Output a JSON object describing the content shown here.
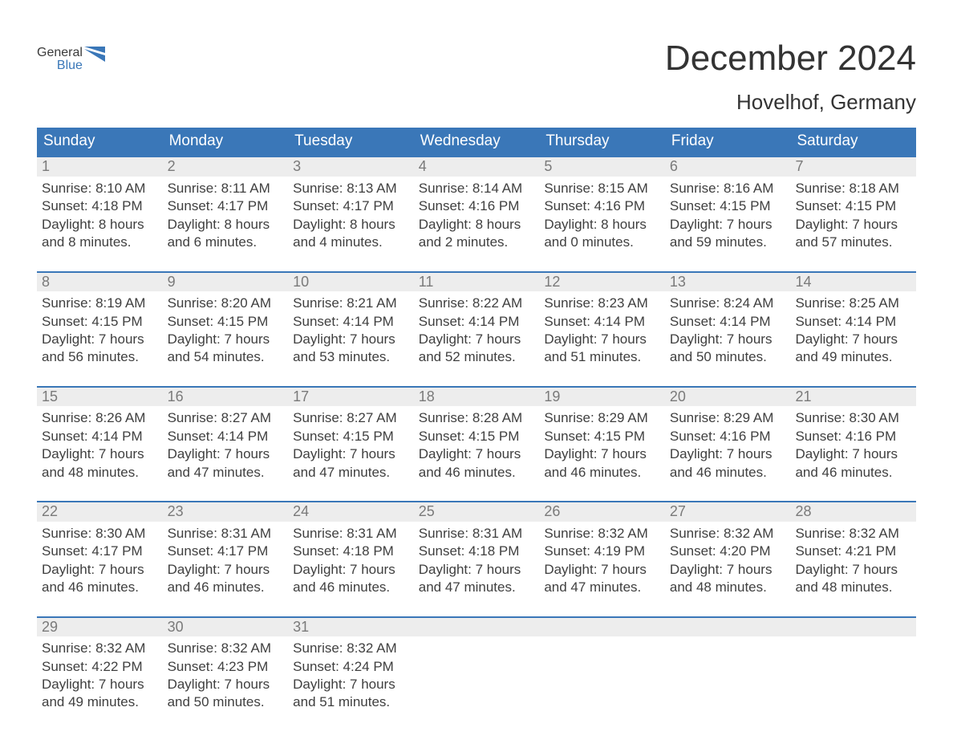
{
  "brand": {
    "word1": "General",
    "word2": "Blue",
    "text_color": "#474747",
    "accent_color": "#3a77b8"
  },
  "header": {
    "title": "December 2024",
    "location": "Hovelhof, Germany"
  },
  "calendar": {
    "type": "calendar-table",
    "header_bg": "#3a77b8",
    "header_fg": "#ffffff",
    "row_divider_color": "#3a77b8",
    "daynum_bg": "#ededed",
    "daynum_fg": "#7a7a7a",
    "body_fg": "#3f3f3f",
    "page_bg": "#ffffff",
    "day_names": [
      "Sunday",
      "Monday",
      "Tuesday",
      "Wednesday",
      "Thursday",
      "Friday",
      "Saturday"
    ],
    "weeks": [
      [
        {
          "n": "1",
          "sunrise": "8:10 AM",
          "sunset": "4:18 PM",
          "dl1": "Daylight: 8 hours",
          "dl2": "and 8 minutes."
        },
        {
          "n": "2",
          "sunrise": "8:11 AM",
          "sunset": "4:17 PM",
          "dl1": "Daylight: 8 hours",
          "dl2": "and 6 minutes."
        },
        {
          "n": "3",
          "sunrise": "8:13 AM",
          "sunset": "4:17 PM",
          "dl1": "Daylight: 8 hours",
          "dl2": "and 4 minutes."
        },
        {
          "n": "4",
          "sunrise": "8:14 AM",
          "sunset": "4:16 PM",
          "dl1": "Daylight: 8 hours",
          "dl2": "and 2 minutes."
        },
        {
          "n": "5",
          "sunrise": "8:15 AM",
          "sunset": "4:16 PM",
          "dl1": "Daylight: 8 hours",
          "dl2": "and 0 minutes."
        },
        {
          "n": "6",
          "sunrise": "8:16 AM",
          "sunset": "4:15 PM",
          "dl1": "Daylight: 7 hours",
          "dl2": "and 59 minutes."
        },
        {
          "n": "7",
          "sunrise": "8:18 AM",
          "sunset": "4:15 PM",
          "dl1": "Daylight: 7 hours",
          "dl2": "and 57 minutes."
        }
      ],
      [
        {
          "n": "8",
          "sunrise": "8:19 AM",
          "sunset": "4:15 PM",
          "dl1": "Daylight: 7 hours",
          "dl2": "and 56 minutes."
        },
        {
          "n": "9",
          "sunrise": "8:20 AM",
          "sunset": "4:15 PM",
          "dl1": "Daylight: 7 hours",
          "dl2": "and 54 minutes."
        },
        {
          "n": "10",
          "sunrise": "8:21 AM",
          "sunset": "4:14 PM",
          "dl1": "Daylight: 7 hours",
          "dl2": "and 53 minutes."
        },
        {
          "n": "11",
          "sunrise": "8:22 AM",
          "sunset": "4:14 PM",
          "dl1": "Daylight: 7 hours",
          "dl2": "and 52 minutes."
        },
        {
          "n": "12",
          "sunrise": "8:23 AM",
          "sunset": "4:14 PM",
          "dl1": "Daylight: 7 hours",
          "dl2": "and 51 minutes."
        },
        {
          "n": "13",
          "sunrise": "8:24 AM",
          "sunset": "4:14 PM",
          "dl1": "Daylight: 7 hours",
          "dl2": "and 50 minutes."
        },
        {
          "n": "14",
          "sunrise": "8:25 AM",
          "sunset": "4:14 PM",
          "dl1": "Daylight: 7 hours",
          "dl2": "and 49 minutes."
        }
      ],
      [
        {
          "n": "15",
          "sunrise": "8:26 AM",
          "sunset": "4:14 PM",
          "dl1": "Daylight: 7 hours",
          "dl2": "and 48 minutes."
        },
        {
          "n": "16",
          "sunrise": "8:27 AM",
          "sunset": "4:14 PM",
          "dl1": "Daylight: 7 hours",
          "dl2": "and 47 minutes."
        },
        {
          "n": "17",
          "sunrise": "8:27 AM",
          "sunset": "4:15 PM",
          "dl1": "Daylight: 7 hours",
          "dl2": "and 47 minutes."
        },
        {
          "n": "18",
          "sunrise": "8:28 AM",
          "sunset": "4:15 PM",
          "dl1": "Daylight: 7 hours",
          "dl2": "and 46 minutes."
        },
        {
          "n": "19",
          "sunrise": "8:29 AM",
          "sunset": "4:15 PM",
          "dl1": "Daylight: 7 hours",
          "dl2": "and 46 minutes."
        },
        {
          "n": "20",
          "sunrise": "8:29 AM",
          "sunset": "4:16 PM",
          "dl1": "Daylight: 7 hours",
          "dl2": "and 46 minutes."
        },
        {
          "n": "21",
          "sunrise": "8:30 AM",
          "sunset": "4:16 PM",
          "dl1": "Daylight: 7 hours",
          "dl2": "and 46 minutes."
        }
      ],
      [
        {
          "n": "22",
          "sunrise": "8:30 AM",
          "sunset": "4:17 PM",
          "dl1": "Daylight: 7 hours",
          "dl2": "and 46 minutes."
        },
        {
          "n": "23",
          "sunrise": "8:31 AM",
          "sunset": "4:17 PM",
          "dl1": "Daylight: 7 hours",
          "dl2": "and 46 minutes."
        },
        {
          "n": "24",
          "sunrise": "8:31 AM",
          "sunset": "4:18 PM",
          "dl1": "Daylight: 7 hours",
          "dl2": "and 46 minutes."
        },
        {
          "n": "25",
          "sunrise": "8:31 AM",
          "sunset": "4:18 PM",
          "dl1": "Daylight: 7 hours",
          "dl2": "and 47 minutes."
        },
        {
          "n": "26",
          "sunrise": "8:32 AM",
          "sunset": "4:19 PM",
          "dl1": "Daylight: 7 hours",
          "dl2": "and 47 minutes."
        },
        {
          "n": "27",
          "sunrise": "8:32 AM",
          "sunset": "4:20 PM",
          "dl1": "Daylight: 7 hours",
          "dl2": "and 48 minutes."
        },
        {
          "n": "28",
          "sunrise": "8:32 AM",
          "sunset": "4:21 PM",
          "dl1": "Daylight: 7 hours",
          "dl2": "and 48 minutes."
        }
      ],
      [
        {
          "n": "29",
          "sunrise": "8:32 AM",
          "sunset": "4:22 PM",
          "dl1": "Daylight: 7 hours",
          "dl2": "and 49 minutes."
        },
        {
          "n": "30",
          "sunrise": "8:32 AM",
          "sunset": "4:23 PM",
          "dl1": "Daylight: 7 hours",
          "dl2": "and 50 minutes."
        },
        {
          "n": "31",
          "sunrise": "8:32 AM",
          "sunset": "4:24 PM",
          "dl1": "Daylight: 7 hours",
          "dl2": "and 51 minutes."
        },
        {
          "empty": true
        },
        {
          "empty": true
        },
        {
          "empty": true
        },
        {
          "empty": true
        }
      ]
    ],
    "labels": {
      "sunrise_prefix": "Sunrise: ",
      "sunset_prefix": "Sunset: "
    }
  }
}
